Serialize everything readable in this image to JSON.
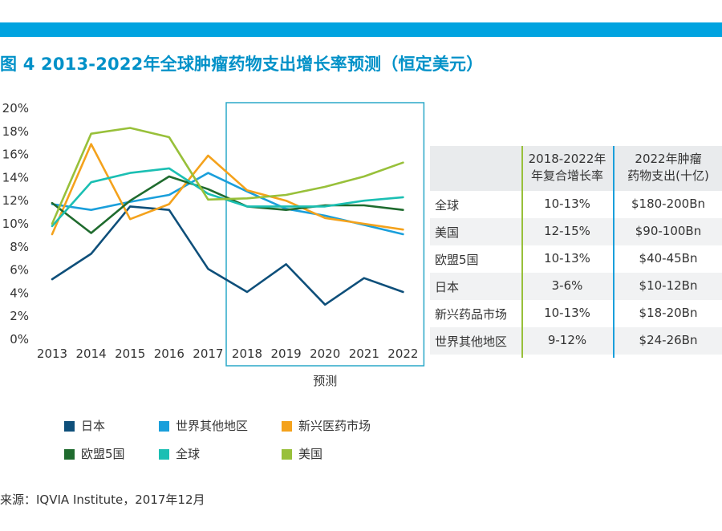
{
  "header": {
    "bar_color": "#00a3e0",
    "title": "图 4 2013-2022年全球肿瘤药物支出增长率预测（恒定美元）",
    "title_color": "#0091c8"
  },
  "chart_data": {
    "type": "line",
    "title": "",
    "xlabel": "预测",
    "ylabel": "",
    "x": [
      "2013",
      "2014",
      "2015",
      "2016",
      "2017",
      "2018",
      "2019",
      "2020",
      "2021",
      "2022"
    ],
    "y_ticks": [
      "0%",
      "2%",
      "4%",
      "6%",
      "8%",
      "10%",
      "12%",
      "14%",
      "16%",
      "18%",
      "20%"
    ],
    "ylim": [
      0,
      20
    ],
    "grid": false,
    "forecast_box": {
      "from": "2018",
      "to": "2022",
      "label": "预测",
      "color": "#2aa8c8"
    },
    "legend_position": "bottom",
    "series": [
      {
        "name": "日本",
        "color": "#0e4f7a",
        "values": [
          5.2,
          7.4,
          11.5,
          11.2,
          6.1,
          4.1,
          6.5,
          3.0,
          5.3,
          4.1
        ]
      },
      {
        "name": "世界其他地区",
        "color": "#1a9fdb",
        "values": [
          11.7,
          11.2,
          11.9,
          12.5,
          14.4,
          12.8,
          11.3,
          10.7,
          9.9,
          9.1
        ]
      },
      {
        "name": "新兴医药市场",
        "color": "#f4a21c",
        "values": [
          9.1,
          16.9,
          10.4,
          11.7,
          15.9,
          12.9,
          12.0,
          10.5,
          10.0,
          9.5
        ]
      },
      {
        "name": "欧盟5国",
        "color": "#1f6b2e",
        "values": [
          11.8,
          9.2,
          12.0,
          14.1,
          13.0,
          11.5,
          11.2,
          11.6,
          11.6,
          11.2
        ]
      },
      {
        "name": "全球",
        "color": "#1bbfb3",
        "values": [
          9.8,
          13.6,
          14.4,
          14.8,
          12.6,
          11.5,
          11.5,
          11.5,
          12.0,
          12.3
        ]
      },
      {
        "name": "美国",
        "color": "#98c03a",
        "values": [
          10.0,
          17.8,
          18.3,
          17.5,
          12.1,
          12.2,
          12.5,
          13.2,
          14.1,
          15.3
        ]
      }
    ]
  },
  "table": {
    "headers": [
      "",
      "2018-2022年\n年复合增长率",
      "2022年肿瘤\n药物支出(十亿)"
    ],
    "rows": [
      [
        "全球",
        "10-13%",
        "$180-200Bn"
      ],
      [
        "美国",
        "12-15%",
        "$90-100Bn"
      ],
      [
        "欧盟5国",
        "10-13%",
        "$40-45Bn"
      ],
      [
        "日本",
        "3-6%",
        "$10-12Bn"
      ],
      [
        "新兴药品市场",
        "10-13%",
        "$18-20Bn"
      ],
      [
        "世界其他地区",
        "9-12%",
        "$24-26Bn"
      ]
    ],
    "divider_colors": [
      "#98c03a",
      "#1a9fdb"
    ]
  },
  "source": "来源：IQVIA Institute，2017年12月"
}
